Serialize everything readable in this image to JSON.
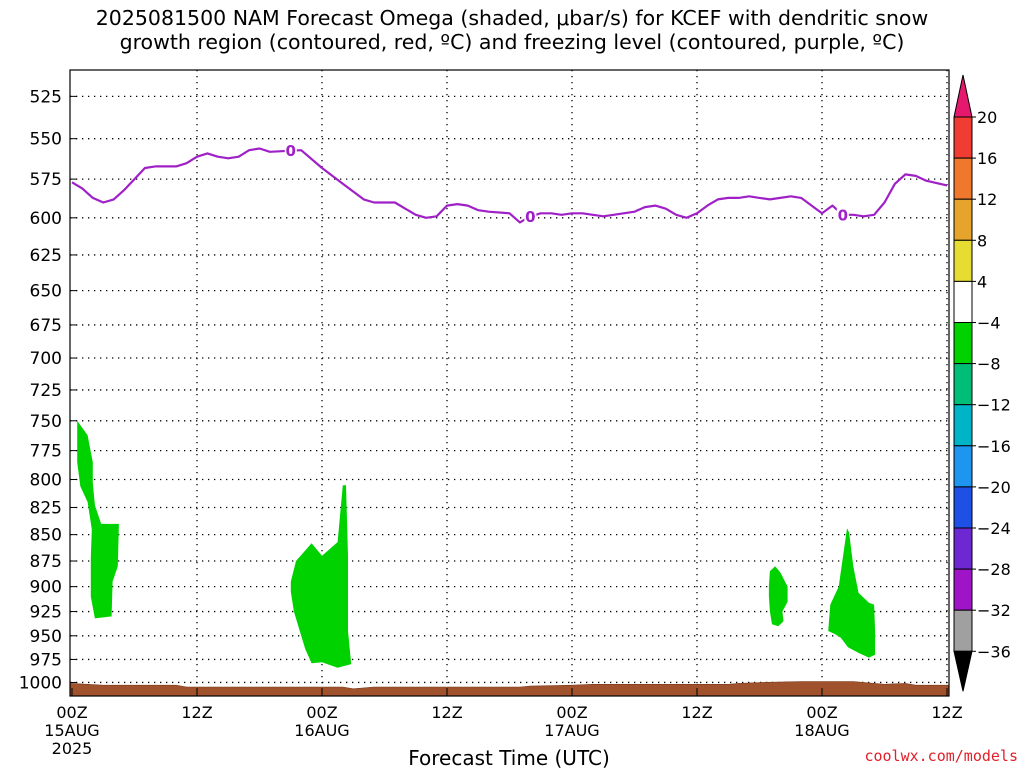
{
  "chart_data": {
    "type": "heatmap",
    "title_line1": "2025081500 NAM Forecast Omega (shaded, μbar/s) for KCEF with dendritic snow",
    "title_line2": "growth region (contoured, red, ºC) and freezing level (contoured, purple, ºC)",
    "xlabel": "Forecast Time (UTC)",
    "credit": "coolwx.com/models",
    "x_ticks": [
      {
        "hour": 0,
        "label": "00Z",
        "date": "15AUG",
        "year": "2025"
      },
      {
        "hour": 12,
        "label": "12Z",
        "date": "",
        "year": ""
      },
      {
        "hour": 24,
        "label": "00Z",
        "date": "16AUG",
        "year": ""
      },
      {
        "hour": 36,
        "label": "12Z",
        "date": "",
        "year": ""
      },
      {
        "hour": 48,
        "label": "00Z",
        "date": "17AUG",
        "year": ""
      },
      {
        "hour": 60,
        "label": "12Z",
        "date": "",
        "year": ""
      },
      {
        "hour": 72,
        "label": "00Z",
        "date": "18AUG",
        "year": ""
      },
      {
        "hour": 84,
        "label": "12Z",
        "date": "",
        "year": ""
      }
    ],
    "xlim_hours": [
      0,
      84
    ],
    "y_ticks": [
      525,
      550,
      575,
      600,
      625,
      650,
      675,
      700,
      725,
      750,
      775,
      800,
      825,
      850,
      875,
      900,
      925,
      950,
      975,
      1000
    ],
    "ylim_hPa": [
      510,
      1015
    ],
    "y_scale": "log-pressure",
    "grid": true,
    "freezing_level": {
      "label": "0",
      "color": "#a020c8",
      "points": [
        [
          0,
          577
        ],
        [
          1,
          581
        ],
        [
          2,
          587
        ],
        [
          3,
          590
        ],
        [
          4,
          588
        ],
        [
          5,
          582
        ],
        [
          6,
          575
        ],
        [
          7,
          568
        ],
        [
          8,
          567
        ],
        [
          9,
          567
        ],
        [
          10,
          567
        ],
        [
          11,
          565
        ],
        [
          12,
          561
        ],
        [
          13,
          559
        ],
        [
          14,
          561
        ],
        [
          15,
          562
        ],
        [
          16,
          561
        ],
        [
          17,
          557
        ],
        [
          18,
          556
        ],
        [
          19,
          558
        ],
        [
          22,
          557
        ],
        [
          24,
          568
        ],
        [
          26,
          578
        ],
        [
          28,
          588
        ],
        [
          29,
          590
        ],
        [
          30,
          590
        ],
        [
          31,
          590
        ],
        [
          32,
          594
        ],
        [
          33,
          598
        ],
        [
          34,
          600
        ],
        [
          35,
          599
        ],
        [
          36,
          592
        ],
        [
          37,
          591
        ],
        [
          38,
          592
        ],
        [
          39,
          595
        ],
        [
          40,
          596
        ],
        [
          42,
          597
        ],
        [
          43,
          603
        ],
        [
          44,
          599
        ],
        [
          45,
          597
        ],
        [
          46,
          597
        ],
        [
          47,
          598
        ],
        [
          48,
          597
        ],
        [
          49,
          597
        ],
        [
          51,
          599
        ],
        [
          52,
          598
        ],
        [
          54,
          596
        ],
        [
          55,
          593
        ],
        [
          56,
          592
        ],
        [
          57,
          594
        ],
        [
          58,
          598
        ],
        [
          59,
          600
        ],
        [
          60,
          597
        ],
        [
          61,
          592
        ],
        [
          62,
          588
        ],
        [
          63,
          587
        ],
        [
          64,
          587
        ],
        [
          65,
          586
        ],
        [
          66,
          587
        ],
        [
          67,
          588
        ],
        [
          68,
          587
        ],
        [
          69,
          586
        ],
        [
          70,
          587
        ],
        [
          71,
          592
        ],
        [
          72,
          597
        ],
        [
          73,
          592
        ],
        [
          74,
          598
        ],
        [
          75,
          598
        ],
        [
          76,
          599
        ],
        [
          77,
          598
        ],
        [
          78,
          590
        ],
        [
          79,
          578
        ],
        [
          80,
          572
        ],
        [
          81,
          573
        ],
        [
          82,
          576
        ],
        [
          84,
          579
        ]
      ],
      "labels_at_hours": [
        21,
        44,
        74
      ]
    },
    "omega_regions": [
      {
        "level": "-8 to -4",
        "polygon": [
          [
            0.5,
            750
          ],
          [
            1.5,
            762
          ],
          [
            2.0,
            785
          ],
          [
            2.0,
            803
          ],
          [
            2.2,
            823
          ],
          [
            2.8,
            840
          ],
          [
            4.5,
            840
          ],
          [
            4.4,
            880
          ],
          [
            3.9,
            895
          ],
          [
            3.8,
            930
          ],
          [
            2.2,
            932
          ],
          [
            1.8,
            910
          ],
          [
            1.8,
            872
          ],
          [
            1.9,
            845
          ],
          [
            1.5,
            820
          ],
          [
            0.8,
            806
          ],
          [
            0.5,
            785
          ]
        ]
      },
      {
        "level": "-8 to -4",
        "polygon": [
          [
            21.0,
            895
          ],
          [
            21.5,
            875
          ],
          [
            23.0,
            858
          ],
          [
            24.0,
            870
          ],
          [
            25.5,
            857
          ],
          [
            26.0,
            805
          ],
          [
            26.3,
            805
          ],
          [
            26.5,
            870
          ],
          [
            26.5,
            945
          ],
          [
            26.8,
            980
          ],
          [
            25.5,
            984
          ],
          [
            24.0,
            978
          ],
          [
            23.0,
            979
          ],
          [
            22.4,
            964
          ],
          [
            22.0,
            950
          ],
          [
            21.3,
            925
          ],
          [
            21.0,
            905
          ]
        ]
      },
      {
        "level": "-8 to -4",
        "polygon": [
          [
            66.9,
            899
          ],
          [
            67.0,
            885
          ],
          [
            67.5,
            880
          ],
          [
            68.0,
            886
          ],
          [
            68.7,
            900
          ],
          [
            68.7,
            915
          ],
          [
            68.2,
            925
          ],
          [
            68.3,
            935
          ],
          [
            67.8,
            940
          ],
          [
            67.2,
            938
          ],
          [
            67.0,
            925
          ],
          [
            66.9,
            910
          ]
        ]
      },
      {
        "level": "-8 to -4",
        "polygon": [
          [
            72.6,
            945
          ],
          [
            72.8,
            918
          ],
          [
            73.6,
            900
          ],
          [
            74.0,
            872
          ],
          [
            74.4,
            844
          ],
          [
            74.6,
            848
          ],
          [
            75.0,
            880
          ],
          [
            75.5,
            906
          ],
          [
            76.5,
            916
          ],
          [
            77.0,
            918
          ],
          [
            77.1,
            945
          ],
          [
            77.1,
            970
          ],
          [
            76.5,
            973
          ],
          [
            75.5,
            968
          ],
          [
            74.5,
            962
          ],
          [
            73.8,
            952
          ],
          [
            73.2,
            948
          ]
        ]
      }
    ],
    "terrain": {
      "color": "#a0522d",
      "top_hPa": [
        [
          0,
          1001
        ],
        [
          3,
          1003
        ],
        [
          10,
          1003
        ],
        [
          11,
          1005
        ],
        [
          26,
          1005
        ],
        [
          27,
          1007
        ],
        [
          29,
          1005
        ],
        [
          43,
          1005
        ],
        [
          44,
          1004
        ],
        [
          48,
          1003
        ],
        [
          50,
          1002
        ],
        [
          55,
          1002
        ],
        [
          63,
          1002
        ],
        [
          64,
          1001
        ],
        [
          66,
          1000
        ],
        [
          70,
          999
        ],
        [
          75,
          999
        ],
        [
          78,
          1002
        ],
        [
          80,
          1001
        ],
        [
          81,
          1003
        ],
        [
          84,
          1003
        ]
      ]
    },
    "colorbar": {
      "labels": [
        "20",
        "16",
        "12",
        "8",
        "4",
        "−4",
        "−8",
        "−12",
        "−16",
        "−20",
        "−24",
        "−28",
        "−32",
        "−36"
      ],
      "colors": [
        "#e6186e",
        "#f03c32",
        "#f0782d",
        "#e6a42d",
        "#e6dc32",
        "#ffffff",
        "#00d200",
        "#00be78",
        "#00b4c8",
        "#1e96f0",
        "#1e50e6",
        "#6e28d2",
        "#a014c8",
        "#a0a0a0",
        "#000000"
      ]
    }
  }
}
